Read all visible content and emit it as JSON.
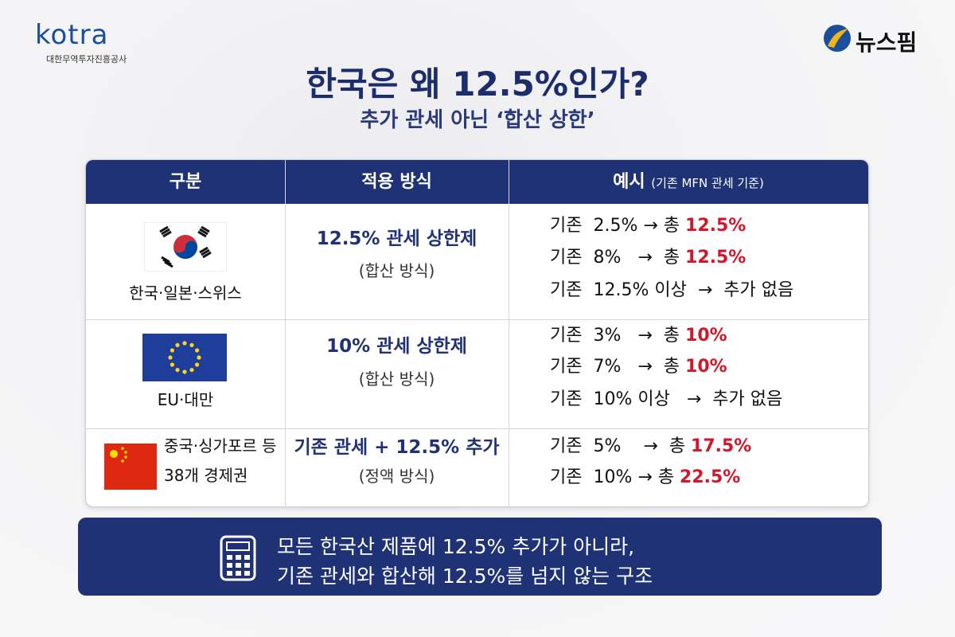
{
  "header": {
    "logo_left": "kotra",
    "logo_left_sub": "대한무역투자진흥공사",
    "logo_right": "뉴스핌",
    "title": "한국은 왜 12.5%인가?",
    "subtitle": "추가 관세 아닌 ‘합산 상한’"
  },
  "table": {
    "columns": [
      "구분",
      "적용 방식",
      "예시"
    ],
    "columns_note": "(기존 MFN 관세 기준)",
    "rows": [
      {
        "region": [
          "한국·일본·스위스"
        ],
        "method": "12.5% 관세 상한제",
        "method_note": "(합산 방식)",
        "examples": [
          {
            "text": "기존  2.5% → 총",
            "highlight": "12.5%"
          },
          {
            "text": "기존  8%   →  총",
            "highlight": "12.5%"
          },
          {
            "text": "기존  12.5% 이상  →  추가 없음"
          }
        ]
      },
      {
        "region": [
          "EU·대만"
        ],
        "method": "10% 관세 상한제",
        "method_note": "(합산 방식)",
        "examples": [
          {
            "text": "기존  3%   →  총",
            "highlight": "10%"
          },
          {
            "text": "기존  7%   →  총",
            "highlight": "10%"
          },
          {
            "text": "기존  10% 이상   →  추가 없음"
          }
        ]
      },
      {
        "region": [
          "중국·싱가포르 등",
          "38개 경제권"
        ],
        "method": "기존 관세 + 12.5% 추가",
        "method_note": "(정액 방식)",
        "examples": [
          {
            "text": "기존  5%    →  총",
            "highlight": "17.5%"
          },
          {
            "text": "기존  10% → 총",
            "highlight": "22.5%"
          }
        ]
      }
    ]
  },
  "footer": {
    "lines": [
      "모든 한국산 제품에 12.5% 추가가 아니라,",
      "기존 관세와 합산해 12.5%를 넘지 않는 구조"
    ]
  }
}
